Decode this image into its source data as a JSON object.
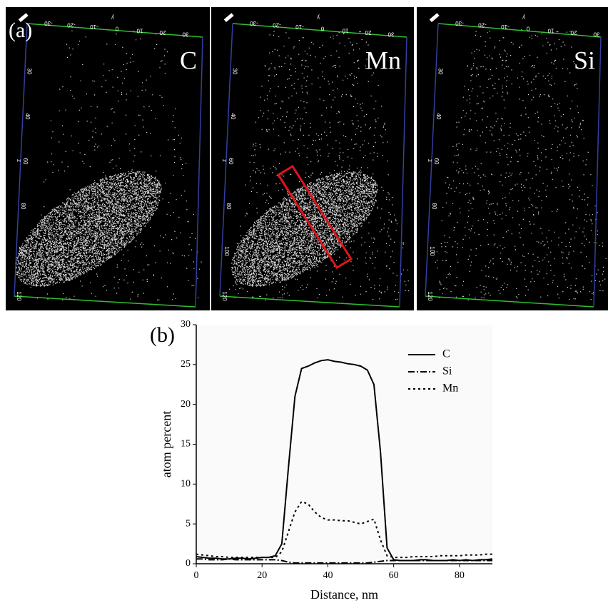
{
  "figure": {
    "panel_label": "(a)",
    "panels": [
      {
        "label": "C",
        "top_ticks": [
          "-30",
          "-20",
          "-10",
          "0",
          "10",
          "20",
          "30"
        ],
        "top_axis": "y",
        "left_ticks": [
          "30",
          "40",
          "60",
          "80",
          "100",
          "120"
        ],
        "left_axis": "z"
      },
      {
        "label": "Mn",
        "top_ticks": [
          "-30",
          "-20",
          "-10",
          "0",
          "10",
          "20",
          "30"
        ],
        "top_axis": "y",
        "left_ticks": [
          "30",
          "40",
          "60",
          "80",
          "100",
          "120"
        ],
        "left_axis": "z"
      },
      {
        "label": "Si",
        "top_ticks": [
          "-30",
          "-20",
          "-10",
          "0",
          "10",
          "20",
          "30"
        ],
        "top_axis": "y",
        "left_ticks": [
          "30",
          "40",
          "60",
          "80",
          "100",
          "120"
        ],
        "left_axis": "z"
      }
    ]
  },
  "chart_data": {
    "type": "line",
    "panel_label": "(b)",
    "x_label": "Distance, nm",
    "y_label": "atom percent",
    "x": [
      0,
      2,
      4,
      6,
      8,
      10,
      12,
      14,
      16,
      18,
      20,
      22,
      24,
      26,
      28,
      30,
      32,
      34,
      36,
      38,
      40,
      42,
      44,
      46,
      48,
      50,
      52,
      54,
      56,
      58,
      60,
      62,
      64,
      66,
      68,
      70,
      72,
      74,
      76,
      78,
      80,
      82,
      84,
      86,
      88,
      90
    ],
    "series": [
      {
        "name": "C",
        "color": "#000000",
        "dash": "solid",
        "values": [
          0.9,
          0.8,
          0.7,
          0.7,
          0.6,
          0.6,
          0.7,
          0.7,
          0.6,
          0.7,
          0.8,
          0.8,
          1.0,
          2.5,
          12,
          21,
          24.5,
          24.8,
          25.2,
          25.5,
          25.6,
          25.4,
          25.3,
          25.1,
          25.0,
          24.8,
          24.3,
          22.5,
          14,
          2,
          0.5,
          0.4,
          0.4,
          0.4,
          0.5,
          0.5,
          0.4,
          0.4,
          0.4,
          0.5,
          0.4,
          0.5,
          0.4,
          0.5,
          0.5,
          0.6
        ]
      },
      {
        "name": "Si",
        "color": "#000000",
        "dash": "dashdot",
        "values": [
          0.6,
          0.6,
          0.5,
          0.5,
          0.5,
          0.6,
          0.5,
          0.5,
          0.5,
          0.5,
          0.5,
          0.5,
          0.5,
          0.4,
          0.2,
          0.1,
          0.1,
          0.1,
          0.1,
          0.1,
          0.1,
          0.1,
          0.1,
          0.1,
          0.1,
          0.1,
          0.1,
          0.2,
          0.3,
          0.4,
          0.4,
          0.4,
          0.4,
          0.4,
          0.4,
          0.4,
          0.4,
          0.4,
          0.4,
          0.4,
          0.4,
          0.4,
          0.4,
          0.4,
          0.4,
          0.4
        ]
      },
      {
        "name": "Mn",
        "color": "#000000",
        "dash": "dotted",
        "values": [
          1.2,
          1.1,
          1.0,
          0.9,
          0.9,
          0.8,
          0.8,
          0.8,
          0.8,
          0.8,
          0.8,
          0.8,
          0.8,
          1.5,
          4,
          6.5,
          7.8,
          7.5,
          6.5,
          5.8,
          5.5,
          5.5,
          5.4,
          5.4,
          5.2,
          5.0,
          5.3,
          5.6,
          3,
          1.0,
          0.8,
          0.8,
          0.8,
          0.9,
          0.9,
          0.9,
          0.9,
          1.0,
          1.0,
          1.0,
          1.0,
          1.1,
          1.1,
          1.1,
          1.2,
          1.2
        ]
      }
    ],
    "xlim": [
      0,
      90
    ],
    "xticks": [
      0,
      20,
      40,
      60,
      80
    ],
    "ylim": [
      0,
      30
    ],
    "yticks": [
      0,
      5,
      10,
      15,
      20,
      25,
      30
    ],
    "legend": "top-right"
  }
}
